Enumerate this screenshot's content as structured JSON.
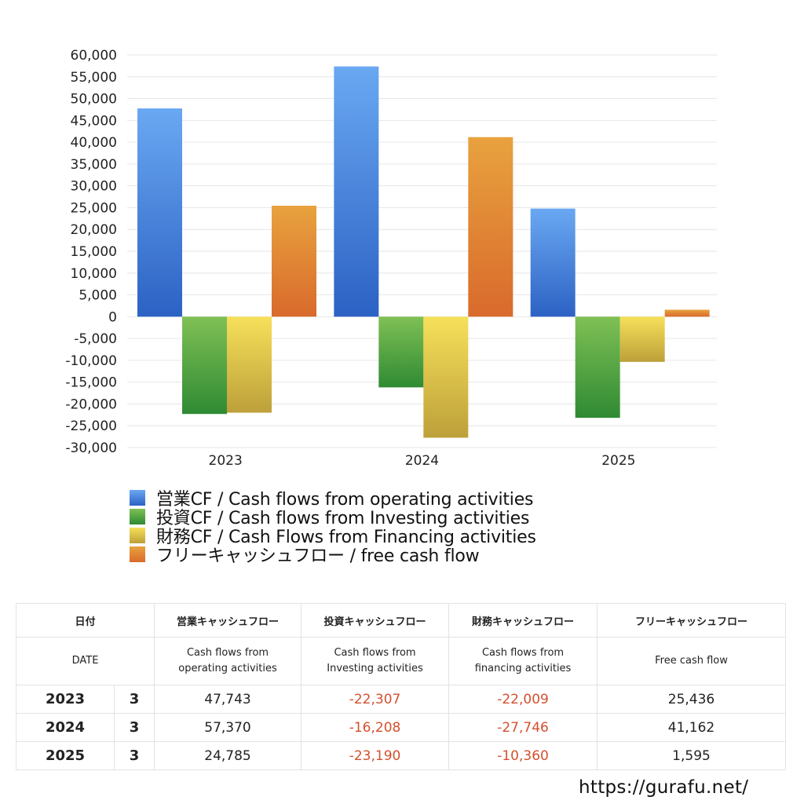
{
  "chart_data": {
    "type": "bar",
    "categories": [
      "2023",
      "2024",
      "2025"
    ],
    "ylim": [
      -30000,
      60000
    ],
    "y_ticks": [
      "60,000",
      "55,000",
      "50,000",
      "45,000",
      "40,000",
      "35,000",
      "30,000",
      "25,000",
      "20,000",
      "15,000",
      "10,000",
      "5,000",
      "0",
      "-5,000",
      "-10,000",
      "-15,000",
      "-20,000",
      "-25,000",
      "-30,000"
    ],
    "grid": true,
    "legend_position": "bottom",
    "series": [
      {
        "name": "営業CF / Cash flows from operating activities",
        "values": [
          47743,
          57370,
          24785
        ],
        "color_top": "#6aa8f2",
        "color_bottom": "#2c62c4"
      },
      {
        "name": "投資CF / Cash flows from Investing activities",
        "values": [
          -22307,
          -16208,
          -23190
        ],
        "color_top": "#7fc055",
        "color_bottom": "#2f8a33"
      },
      {
        "name": "財務CF / Cash Flows from Financing activities",
        "values": [
          -22009,
          -27746,
          -10360
        ],
        "color_top": "#f6e05a",
        "color_bottom": "#bda03a"
      },
      {
        "name": "フリーキャッシュフロー / free cash flow",
        "values": [
          25436,
          41162,
          1595
        ],
        "color_top": "#e8a23e",
        "color_bottom": "#d96a2c"
      }
    ]
  },
  "table": {
    "header_jp": [
      "日付",
      "営業キャッシュフロー",
      "投資キャッシュフロー",
      "財務キャッシュフロー",
      "フリーキャッシュフロー"
    ],
    "header_en_date": "DATE",
    "header_en_op": [
      "Cash flows from",
      "operating activities"
    ],
    "header_en_inv": [
      "Cash flows from",
      "Investing activities"
    ],
    "header_en_fin": [
      "Cash flows from",
      "financing activities"
    ],
    "header_en_fcf": "Free cash flow",
    "rows": [
      {
        "year": "2023",
        "month": "3",
        "op": "47,743",
        "inv": "-22,307",
        "fin": "-22,009",
        "fcf": "25,436"
      },
      {
        "year": "2024",
        "month": "3",
        "op": "57,370",
        "inv": "-16,208",
        "fin": "-27,746",
        "fcf": "41,162"
      },
      {
        "year": "2025",
        "month": "3",
        "op": "24,785",
        "inv": "-23,190",
        "fin": "-10,360",
        "fcf": "1,595"
      }
    ]
  },
  "footer": {
    "url": "https://gurafu.net/"
  }
}
